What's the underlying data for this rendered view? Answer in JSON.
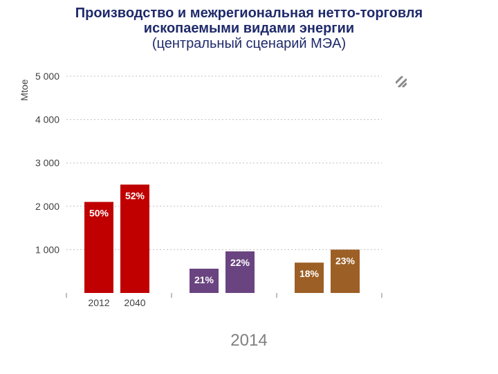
{
  "title": {
    "line1": "Производство и межрегиональная нетто-торговля",
    "line2": "ископаемыми видами энергии",
    "subtitle": "(центральный сценарий МЭА)"
  },
  "footer_year": "2014",
  "colors": {
    "coal": "#c00000",
    "gas": "#6a4480",
    "oil": "#9c5f25",
    "grid": "#bfbfbf",
    "axis_text": "#404040"
  },
  "chart_data": {
    "type": "bar",
    "ylabel": "Mtoe",
    "ylim": [
      0,
      5000
    ],
    "yticks": [
      1000,
      2000,
      3000,
      4000,
      5000
    ],
    "ytick_labels": [
      "1 000",
      "2 000",
      "3 000",
      "4 000",
      "5 000"
    ],
    "categories": [
      "2012",
      "2040"
    ],
    "grid": true,
    "groups": [
      {
        "name": "group-1",
        "color": "#c00000",
        "bars": [
          {
            "year": "2012",
            "value": 2100,
            "label": "50%"
          },
          {
            "year": "2040",
            "value": 2500,
            "label": "52%"
          }
        ]
      },
      {
        "name": "group-2",
        "color": "#6a4480",
        "bars": [
          {
            "year": "2012",
            "value": 560,
            "label": "21%"
          },
          {
            "year": "2040",
            "value": 960,
            "label": "22%"
          }
        ]
      },
      {
        "name": "group-3",
        "color": "#9c5f25",
        "bars": [
          {
            "year": "2012",
            "value": 700,
            "label": "18%"
          },
          {
            "year": "2040",
            "value": 1000,
            "label": "23%"
          }
        ]
      }
    ],
    "x_tick_labels_group": 0
  }
}
